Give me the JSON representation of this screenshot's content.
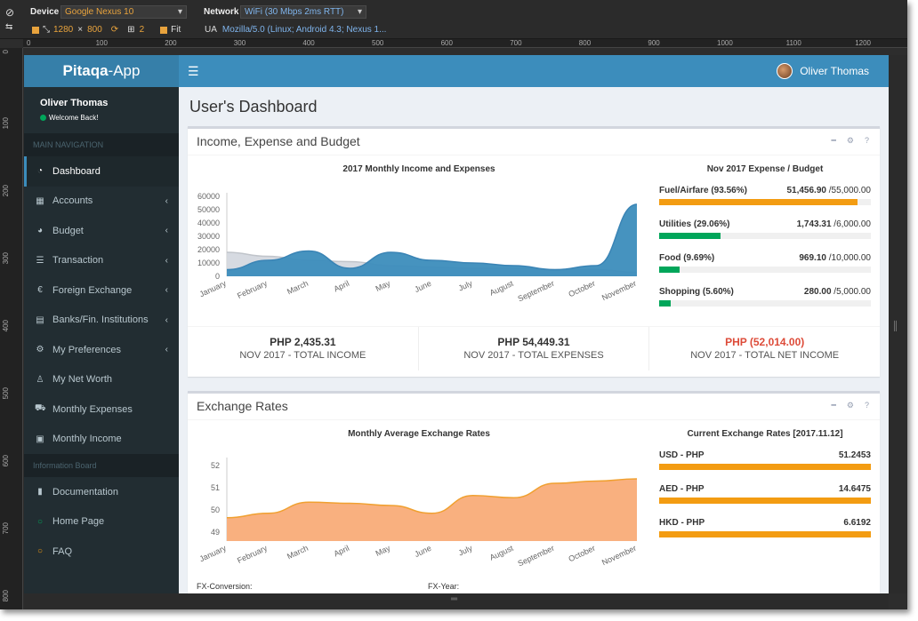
{
  "devtools": {
    "device_label": "Device",
    "device_value": "Google Nexus 10",
    "network_label": "Network",
    "network_value": "WiFi (30 Mbps 2ms RTT)",
    "width": "1280",
    "times": "×",
    "height": "800",
    "scale": "2",
    "fit": "Fit",
    "ua_label": "UA",
    "ua_value": "Mozilla/5.0 (Linux; Android 4.3; Nexus 1...",
    "hruler": [
      "0",
      "100",
      "200",
      "300",
      "400",
      "500",
      "600",
      "700",
      "800",
      "900",
      "1000",
      "1100",
      "1200"
    ],
    "vruler": [
      "0",
      "100",
      "200",
      "300",
      "400",
      "500",
      "600",
      "700",
      "800"
    ]
  },
  "app": {
    "logo_a": "Pitaqa",
    "logo_b": "-App",
    "user_name": "Oliver Thomas",
    "welcome": "Welcome Back!",
    "main_nav_header": "MAIN NAVIGATION",
    "info_header": "Information Board",
    "nav": [
      {
        "label": "Dashboard",
        "icon": "dashboard-icon"
      },
      {
        "label": "Accounts",
        "icon": "table-icon"
      },
      {
        "label": "Budget",
        "icon": "pie-chart-icon"
      },
      {
        "label": "Transaction",
        "icon": "list-icon"
      },
      {
        "label": "Foreign Exchange",
        "icon": "euro-icon"
      },
      {
        "label": "Banks/Fin. Institutions",
        "icon": "bank-icon"
      },
      {
        "label": "My Preferences",
        "icon": "gears-icon"
      },
      {
        "label": "My Net Worth",
        "icon": "user-icon"
      },
      {
        "label": "Monthly Expenses",
        "icon": "cart-icon"
      },
      {
        "label": "Monthly Income",
        "icon": "money-icon"
      }
    ],
    "info_nav": [
      {
        "label": "Documentation",
        "icon": "book-icon"
      },
      {
        "label": "Home Page",
        "icon": "circle-green-icon"
      },
      {
        "label": "FAQ",
        "icon": "circle-orange-icon"
      }
    ],
    "page_title": "User's Dashboard",
    "box1_title": "Income, Expense and Budget",
    "box2_title": "Exchange Rates",
    "chart1_title": "2017 Monthly Income and Expenses",
    "budget_title": "Nov 2017 Expense / Budget",
    "budget": [
      {
        "label": "Fuel/Airfare (93.56%)",
        "spent": "51,456.90",
        "budget": "/55,000.00",
        "pct": 93.56,
        "color": "#f39c12"
      },
      {
        "label": "Utilities (29.06%)",
        "spent": "1,743.31",
        "budget": "/6,000.00",
        "pct": 29.06,
        "color": "#00a65a"
      },
      {
        "label": "Food (9.69%)",
        "spent": "969.10",
        "budget": "/10,000.00",
        "pct": 9.69,
        "color": "#00a65a"
      },
      {
        "label": "Shopping (5.60%)",
        "spent": "280.00",
        "budget": "/5,000.00",
        "pct": 5.6,
        "color": "#00a65a"
      }
    ],
    "stats": [
      {
        "value": "PHP 2,435.31",
        "label": "NOV 2017 - TOTAL INCOME",
        "color": "#333"
      },
      {
        "value": "PHP 54,449.31",
        "label": "NOV 2017 - TOTAL EXPENSES",
        "color": "#333"
      },
      {
        "value": "PHP (52,014.00)",
        "label": "NOV 2017 - TOTAL NET INCOME",
        "color": "#dd4b39"
      }
    ],
    "chart2_title": "Monthly Average Exchange Rates",
    "rates_title": "Current Exchange Rates [2017.11.12]",
    "rates": [
      {
        "label": "USD - PHP",
        "value": "51.2453"
      },
      {
        "label": "AED - PHP",
        "value": "14.6475"
      },
      {
        "label": "HKD - PHP",
        "value": "6.6192"
      }
    ],
    "fx_conversion": "FX-Conversion:",
    "fx_year": "FX-Year:",
    "colors": {
      "primary": "#3c8dbc",
      "sidebar": "#222d32",
      "income": "#d2d6de",
      "expense": "#3c8dbc",
      "fx": "#f9b07f"
    }
  },
  "chart_data": [
    {
      "type": "area",
      "title": "2017 Monthly Income and Expenses",
      "categories": [
        "January",
        "February",
        "March",
        "April",
        "May",
        "June",
        "July",
        "August",
        "September",
        "October",
        "November"
      ],
      "yticks": [
        "0",
        "10000",
        "20000",
        "30000",
        "40000",
        "50000",
        "60000"
      ],
      "ylim": [
        0,
        60000
      ],
      "series": [
        {
          "values": [
            18000,
            15000,
            12000,
            11000,
            8000,
            7000,
            6000,
            6000,
            5000,
            5000,
            3000
          ]
        },
        {
          "values": [
            5000,
            12000,
            19000,
            6000,
            18000,
            12000,
            10000,
            8000,
            5000,
            8000,
            54000
          ]
        }
      ]
    },
    {
      "type": "area",
      "title": "Monthly Average Exchange Rates",
      "categories": [
        "January",
        "February",
        "March",
        "April",
        "May",
        "June",
        "July",
        "August",
        "September",
        "October",
        "November"
      ],
      "yticks": [
        "49",
        "50",
        "51",
        "52"
      ],
      "ylim": [
        48.6,
        52.2
      ],
      "series": [
        {
          "values": [
            49.65,
            49.85,
            50.35,
            50.3,
            50.2,
            49.85,
            50.65,
            50.55,
            51.2,
            51.3,
            51.4
          ]
        }
      ]
    }
  ]
}
